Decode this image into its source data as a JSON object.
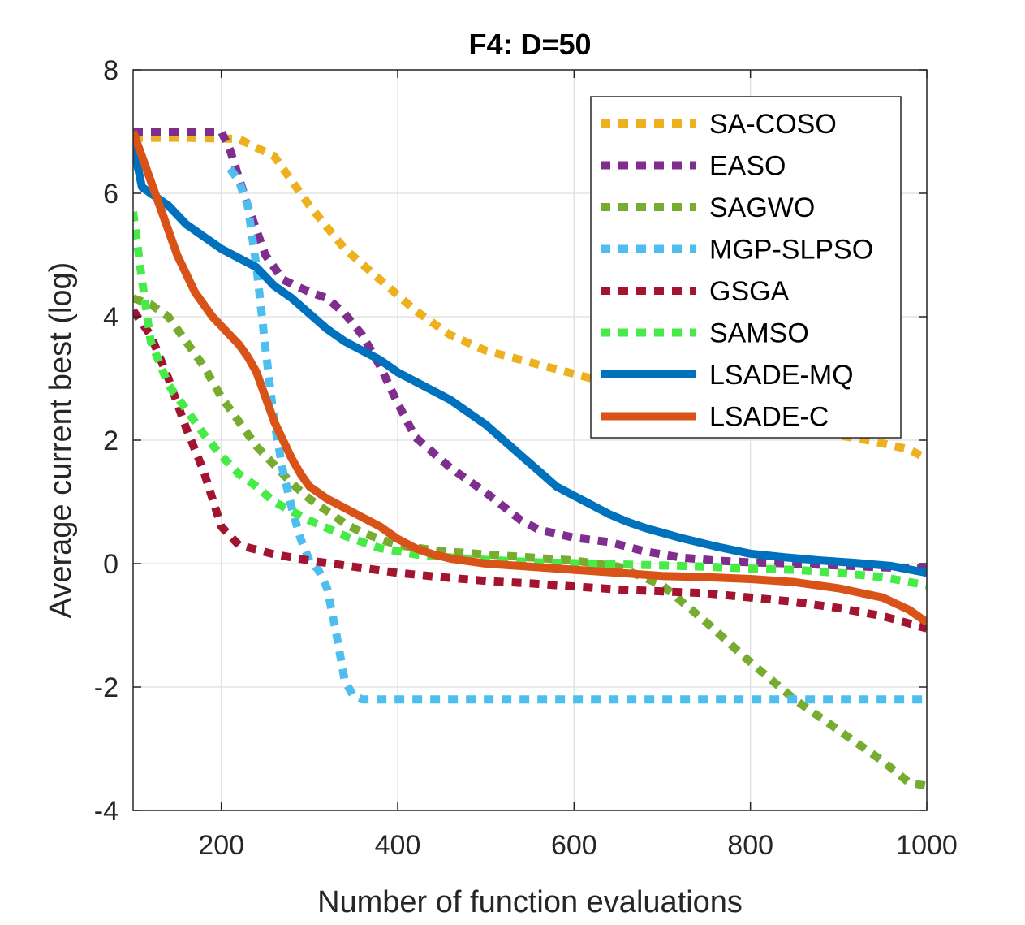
{
  "chart_data": {
    "type": "line",
    "title": "F4: D=50",
    "xlabel": "Number of function evaluations",
    "ylabel": "Average current best (log)",
    "xlim": [
      100,
      1000
    ],
    "ylim": [
      -4,
      8
    ],
    "xticks": [
      200,
      400,
      600,
      800,
      1000
    ],
    "yticks": [
      -4,
      -2,
      0,
      2,
      4,
      6,
      8
    ],
    "xtick_labels": [
      "200",
      "400",
      "600",
      "800",
      "1000"
    ],
    "ytick_labels": [
      "-4",
      "-2",
      "0",
      "2",
      "4",
      "6",
      "8"
    ],
    "grid": true,
    "legend_position": "top-right",
    "series": [
      {
        "name": "SA-COSO",
        "color": "#EDB120",
        "style": "dotted",
        "points": [
          [
            100,
            6.9
          ],
          [
            160,
            6.9
          ],
          [
            220,
            6.88
          ],
          [
            260,
            6.6
          ],
          [
            300,
            5.8
          ],
          [
            340,
            5.1
          ],
          [
            380,
            4.6
          ],
          [
            420,
            4.1
          ],
          [
            460,
            3.7
          ],
          [
            500,
            3.45
          ],
          [
            540,
            3.3
          ],
          [
            580,
            3.15
          ],
          [
            620,
            3.0
          ],
          [
            660,
            2.85
          ],
          [
            700,
            2.7
          ],
          [
            740,
            2.55
          ],
          [
            780,
            2.42
          ],
          [
            820,
            2.3
          ],
          [
            860,
            2.2
          ],
          [
            900,
            2.08
          ],
          [
            940,
            1.98
          ],
          [
            980,
            1.85
          ],
          [
            1000,
            1.7
          ]
        ]
      },
      {
        "name": "EASO",
        "color": "#7E2F8E",
        "style": "dotted",
        "points": [
          [
            100,
            7.0
          ],
          [
            160,
            7.0
          ],
          [
            200,
            7.0
          ],
          [
            210,
            6.7
          ],
          [
            230,
            5.8
          ],
          [
            250,
            5.0
          ],
          [
            270,
            4.6
          ],
          [
            300,
            4.4
          ],
          [
            320,
            4.3
          ],
          [
            340,
            4.05
          ],
          [
            360,
            3.7
          ],
          [
            380,
            3.2
          ],
          [
            400,
            2.6
          ],
          [
            420,
            2.05
          ],
          [
            460,
            1.55
          ],
          [
            500,
            1.15
          ],
          [
            540,
            0.7
          ],
          [
            560,
            0.55
          ],
          [
            600,
            0.42
          ],
          [
            640,
            0.35
          ],
          [
            680,
            0.2
          ],
          [
            720,
            0.1
          ],
          [
            760,
            0.05
          ],
          [
            800,
            0.02
          ],
          [
            850,
            0.0
          ],
          [
            900,
            -0.03
          ],
          [
            950,
            -0.06
          ],
          [
            1000,
            -0.08
          ]
        ]
      },
      {
        "name": "SAGWO",
        "color": "#77AC30",
        "style": "dotted",
        "points": [
          [
            100,
            4.3
          ],
          [
            120,
            4.2
          ],
          [
            140,
            4.0
          ],
          [
            160,
            3.6
          ],
          [
            180,
            3.2
          ],
          [
            200,
            2.7
          ],
          [
            220,
            2.3
          ],
          [
            240,
            1.9
          ],
          [
            260,
            1.6
          ],
          [
            280,
            1.3
          ],
          [
            300,
            1.05
          ],
          [
            320,
            0.85
          ],
          [
            340,
            0.65
          ],
          [
            360,
            0.5
          ],
          [
            380,
            0.4
          ],
          [
            400,
            0.3
          ],
          [
            450,
            0.2
          ],
          [
            500,
            0.15
          ],
          [
            550,
            0.1
          ],
          [
            600,
            0.05
          ],
          [
            650,
            -0.05
          ],
          [
            700,
            -0.35
          ],
          [
            750,
            -0.95
          ],
          [
            800,
            -1.6
          ],
          [
            850,
            -2.2
          ],
          [
            900,
            -2.7
          ],
          [
            950,
            -3.2
          ],
          [
            980,
            -3.55
          ],
          [
            1000,
            -3.6
          ]
        ]
      },
      {
        "name": "MGP-SLPSO",
        "color": "#4DBEEE",
        "style": "dotted",
        "points": [
          [
            210,
            6.4
          ],
          [
            220,
            6.2
          ],
          [
            230,
            5.8
          ],
          [
            240,
            4.8
          ],
          [
            250,
            3.5
          ],
          [
            260,
            2.3
          ],
          [
            270,
            1.5
          ],
          [
            280,
            0.9
          ],
          [
            290,
            0.4
          ],
          [
            300,
            0.05
          ],
          [
            310,
            -0.1
          ],
          [
            320,
            -0.4
          ],
          [
            330,
            -1.1
          ],
          [
            340,
            -1.9
          ],
          [
            350,
            -2.15
          ],
          [
            360,
            -2.2
          ],
          [
            400,
            -2.2
          ],
          [
            500,
            -2.2
          ],
          [
            600,
            -2.2
          ],
          [
            700,
            -2.2
          ],
          [
            800,
            -2.2
          ],
          [
            900,
            -2.2
          ],
          [
            1000,
            -2.2
          ]
        ]
      },
      {
        "name": "GSGA",
        "color": "#A2142F",
        "style": "dotted",
        "points": [
          [
            100,
            4.1
          ],
          [
            120,
            3.7
          ],
          [
            140,
            3.0
          ],
          [
            160,
            2.2
          ],
          [
            180,
            1.5
          ],
          [
            200,
            0.6
          ],
          [
            220,
            0.3
          ],
          [
            260,
            0.15
          ],
          [
            300,
            0.05
          ],
          [
            350,
            -0.05
          ],
          [
            400,
            -0.15
          ],
          [
            450,
            -0.22
          ],
          [
            500,
            -0.28
          ],
          [
            550,
            -0.32
          ],
          [
            600,
            -0.37
          ],
          [
            650,
            -0.42
          ],
          [
            700,
            -0.45
          ],
          [
            750,
            -0.48
          ],
          [
            800,
            -0.55
          ],
          [
            850,
            -0.62
          ],
          [
            900,
            -0.72
          ],
          [
            950,
            -0.85
          ],
          [
            1000,
            -1.05
          ]
        ]
      },
      {
        "name": "SAMSO",
        "color": "#47EB47",
        "style": "dotted",
        "points": [
          [
            100,
            5.7
          ],
          [
            110,
            4.6
          ],
          [
            120,
            3.6
          ],
          [
            140,
            2.9
          ],
          [
            160,
            2.5
          ],
          [
            180,
            2.1
          ],
          [
            200,
            1.75
          ],
          [
            220,
            1.45
          ],
          [
            240,
            1.25
          ],
          [
            260,
            1.0
          ],
          [
            280,
            0.85
          ],
          [
            300,
            0.7
          ],
          [
            340,
            0.45
          ],
          [
            380,
            0.25
          ],
          [
            420,
            0.15
          ],
          [
            460,
            0.1
          ],
          [
            500,
            0.06
          ],
          [
            560,
            0.02
          ],
          [
            620,
            0.0
          ],
          [
            700,
            -0.03
          ],
          [
            750,
            -0.05
          ],
          [
            800,
            -0.08
          ],
          [
            850,
            -0.1
          ],
          [
            900,
            -0.15
          ],
          [
            950,
            -0.22
          ],
          [
            1000,
            -0.35
          ]
        ]
      },
      {
        "name": "LSADE-MQ",
        "color": "#0072BD",
        "style": "solid",
        "points": [
          [
            100,
            6.8
          ],
          [
            110,
            6.1
          ],
          [
            120,
            6.0
          ],
          [
            140,
            5.8
          ],
          [
            160,
            5.5
          ],
          [
            180,
            5.3
          ],
          [
            200,
            5.1
          ],
          [
            220,
            4.95
          ],
          [
            240,
            4.8
          ],
          [
            260,
            4.5
          ],
          [
            280,
            4.3
          ],
          [
            300,
            4.05
          ],
          [
            320,
            3.8
          ],
          [
            340,
            3.6
          ],
          [
            360,
            3.45
          ],
          [
            380,
            3.3
          ],
          [
            400,
            3.1
          ],
          [
            420,
            2.95
          ],
          [
            440,
            2.8
          ],
          [
            460,
            2.65
          ],
          [
            480,
            2.45
          ],
          [
            500,
            2.25
          ],
          [
            520,
            2.0
          ],
          [
            540,
            1.75
          ],
          [
            560,
            1.5
          ],
          [
            580,
            1.25
          ],
          [
            600,
            1.1
          ],
          [
            620,
            0.95
          ],
          [
            640,
            0.8
          ],
          [
            660,
            0.68
          ],
          [
            680,
            0.58
          ],
          [
            700,
            0.5
          ],
          [
            720,
            0.42
          ],
          [
            740,
            0.35
          ],
          [
            760,
            0.28
          ],
          [
            780,
            0.22
          ],
          [
            800,
            0.16
          ],
          [
            840,
            0.1
          ],
          [
            880,
            0.05
          ],
          [
            920,
            0.01
          ],
          [
            960,
            -0.04
          ],
          [
            1000,
            -0.15
          ]
        ]
      },
      {
        "name": "LSADE-C",
        "color": "#D95319",
        "style": "solid",
        "points": [
          [
            100,
            7.0
          ],
          [
            110,
            6.6
          ],
          [
            120,
            6.2
          ],
          [
            130,
            5.8
          ],
          [
            140,
            5.4
          ],
          [
            150,
            5.0
          ],
          [
            160,
            4.7
          ],
          [
            170,
            4.4
          ],
          [
            180,
            4.2
          ],
          [
            190,
            4.0
          ],
          [
            200,
            3.85
          ],
          [
            210,
            3.7
          ],
          [
            220,
            3.55
          ],
          [
            230,
            3.35
          ],
          [
            240,
            3.1
          ],
          [
            250,
            2.7
          ],
          [
            260,
            2.3
          ],
          [
            270,
            2.0
          ],
          [
            280,
            1.7
          ],
          [
            290,
            1.45
          ],
          [
            300,
            1.25
          ],
          [
            320,
            1.05
          ],
          [
            340,
            0.9
          ],
          [
            360,
            0.75
          ],
          [
            380,
            0.6
          ],
          [
            400,
            0.4
          ],
          [
            420,
            0.25
          ],
          [
            440,
            0.15
          ],
          [
            460,
            0.08
          ],
          [
            500,
            0.0
          ],
          [
            550,
            -0.05
          ],
          [
            600,
            -0.1
          ],
          [
            650,
            -0.15
          ],
          [
            700,
            -0.2
          ],
          [
            750,
            -0.22
          ],
          [
            800,
            -0.25
          ],
          [
            850,
            -0.3
          ],
          [
            900,
            -0.4
          ],
          [
            950,
            -0.55
          ],
          [
            980,
            -0.75
          ],
          [
            1000,
            -0.95
          ]
        ]
      }
    ]
  }
}
